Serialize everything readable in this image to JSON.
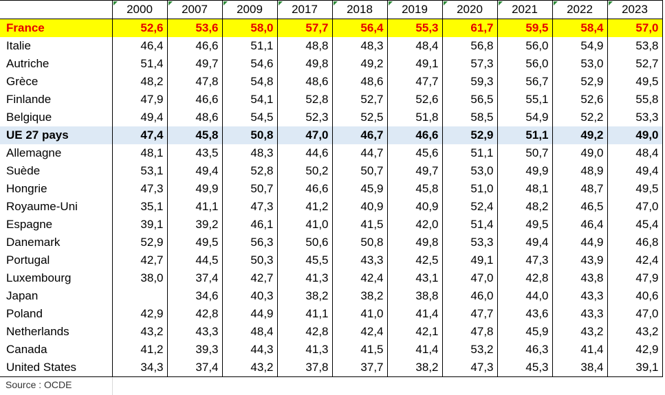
{
  "table": {
    "years": [
      "2000",
      "2007",
      "2009",
      "2017",
      "2018",
      "2019",
      "2020",
      "2021",
      "2022",
      "2023"
    ],
    "rows": [
      {
        "country": "France",
        "values": [
          "52,6",
          "53,6",
          "58,0",
          "57,7",
          "56,4",
          "55,3",
          "61,7",
          "59,5",
          "58,4",
          "57,0"
        ]
      },
      {
        "country": "Italie",
        "values": [
          "46,4",
          "46,6",
          "51,1",
          "48,8",
          "48,3",
          "48,4",
          "56,8",
          "56,0",
          "54,9",
          "53,8"
        ]
      },
      {
        "country": "Autriche",
        "values": [
          "51,4",
          "49,7",
          "54,6",
          "49,8",
          "49,2",
          "49,1",
          "57,3",
          "56,0",
          "53,0",
          "52,7"
        ]
      },
      {
        "country": "Grèce",
        "values": [
          "48,2",
          "47,8",
          "54,8",
          "48,6",
          "48,6",
          "47,7",
          "59,3",
          "56,7",
          "52,9",
          "49,5"
        ]
      },
      {
        "country": "Finlande",
        "values": [
          "47,9",
          "46,6",
          "54,1",
          "52,8",
          "52,7",
          "52,6",
          "56,5",
          "55,1",
          "52,6",
          "55,8"
        ]
      },
      {
        "country": "Belgique",
        "values": [
          "49,4",
          "48,6",
          "54,5",
          "52,3",
          "52,5",
          "51,8",
          "58,5",
          "54,9",
          "52,2",
          "53,3"
        ]
      },
      {
        "country": "UE 27 pays",
        "values": [
          "47,4",
          "45,8",
          "50,8",
          "47,0",
          "46,7",
          "46,6",
          "52,9",
          "51,1",
          "49,2",
          "49,0"
        ]
      },
      {
        "country": "Allemagne",
        "values": [
          "48,1",
          "43,5",
          "48,3",
          "44,6",
          "44,7",
          "45,6",
          "51,1",
          "50,7",
          "49,0",
          "48,4"
        ]
      },
      {
        "country": "Suède",
        "values": [
          "53,1",
          "49,4",
          "52,8",
          "50,2",
          "50,7",
          "49,7",
          "53,0",
          "49,9",
          "48,9",
          "49,4"
        ]
      },
      {
        "country": "Hongrie",
        "values": [
          "47,3",
          "49,9",
          "50,7",
          "46,6",
          "45,9",
          "45,8",
          "51,0",
          "48,1",
          "48,7",
          "49,5"
        ]
      },
      {
        "country": "Royaume-Uni",
        "values": [
          "35,1",
          "41,1",
          "47,3",
          "41,2",
          "40,9",
          "40,9",
          "52,4",
          "48,2",
          "46,5",
          "47,0"
        ]
      },
      {
        "country": "Espagne",
        "values": [
          "39,1",
          "39,2",
          "46,1",
          "41,0",
          "41,5",
          "42,0",
          "51,4",
          "49,5",
          "46,4",
          "45,4"
        ]
      },
      {
        "country": "Danemark",
        "values": [
          "52,9",
          "49,5",
          "56,3",
          "50,6",
          "50,8",
          "49,8",
          "53,3",
          "49,4",
          "44,9",
          "46,8"
        ]
      },
      {
        "country": "Portugal",
        "values": [
          "42,7",
          "44,5",
          "50,3",
          "45,5",
          "43,3",
          "42,5",
          "49,1",
          "47,3",
          "43,9",
          "42,4"
        ]
      },
      {
        "country": "Luxembourg",
        "values": [
          "38,0",
          "37,4",
          "42,7",
          "41,3",
          "42,4",
          "43,1",
          "47,0",
          "42,8",
          "43,8",
          "47,9"
        ]
      },
      {
        "country": "Japan",
        "values": [
          "",
          "34,6",
          "40,3",
          "38,2",
          "38,2",
          "38,8",
          "46,0",
          "44,0",
          "43,3",
          "40,6"
        ]
      },
      {
        "country": "Poland",
        "values": [
          "42,9",
          "42,8",
          "44,9",
          "41,1",
          "41,0",
          "41,4",
          "47,7",
          "43,6",
          "43,3",
          "47,0"
        ]
      },
      {
        "country": "Netherlands",
        "values": [
          "43,2",
          "43,3",
          "48,4",
          "42,8",
          "42,4",
          "42,1",
          "47,8",
          "45,9",
          "43,2",
          "43,2"
        ]
      },
      {
        "country": "Canada",
        "values": [
          "41,2",
          "39,3",
          "44,3",
          "41,3",
          "41,5",
          "41,4",
          "53,2",
          "46,3",
          "41,4",
          "42,9"
        ]
      },
      {
        "country": "United States",
        "values": [
          "34,3",
          "37,4",
          "43,2",
          "37,8",
          "37,7",
          "38,2",
          "47,3",
          "45,3",
          "38,4",
          "39,1"
        ]
      }
    ],
    "source": "Source : OCDE"
  },
  "colors": {
    "highlight_france_bg": "#ffff00",
    "highlight_france_text": "#e60000",
    "highlight_eu_bg": "#dde9f5"
  }
}
